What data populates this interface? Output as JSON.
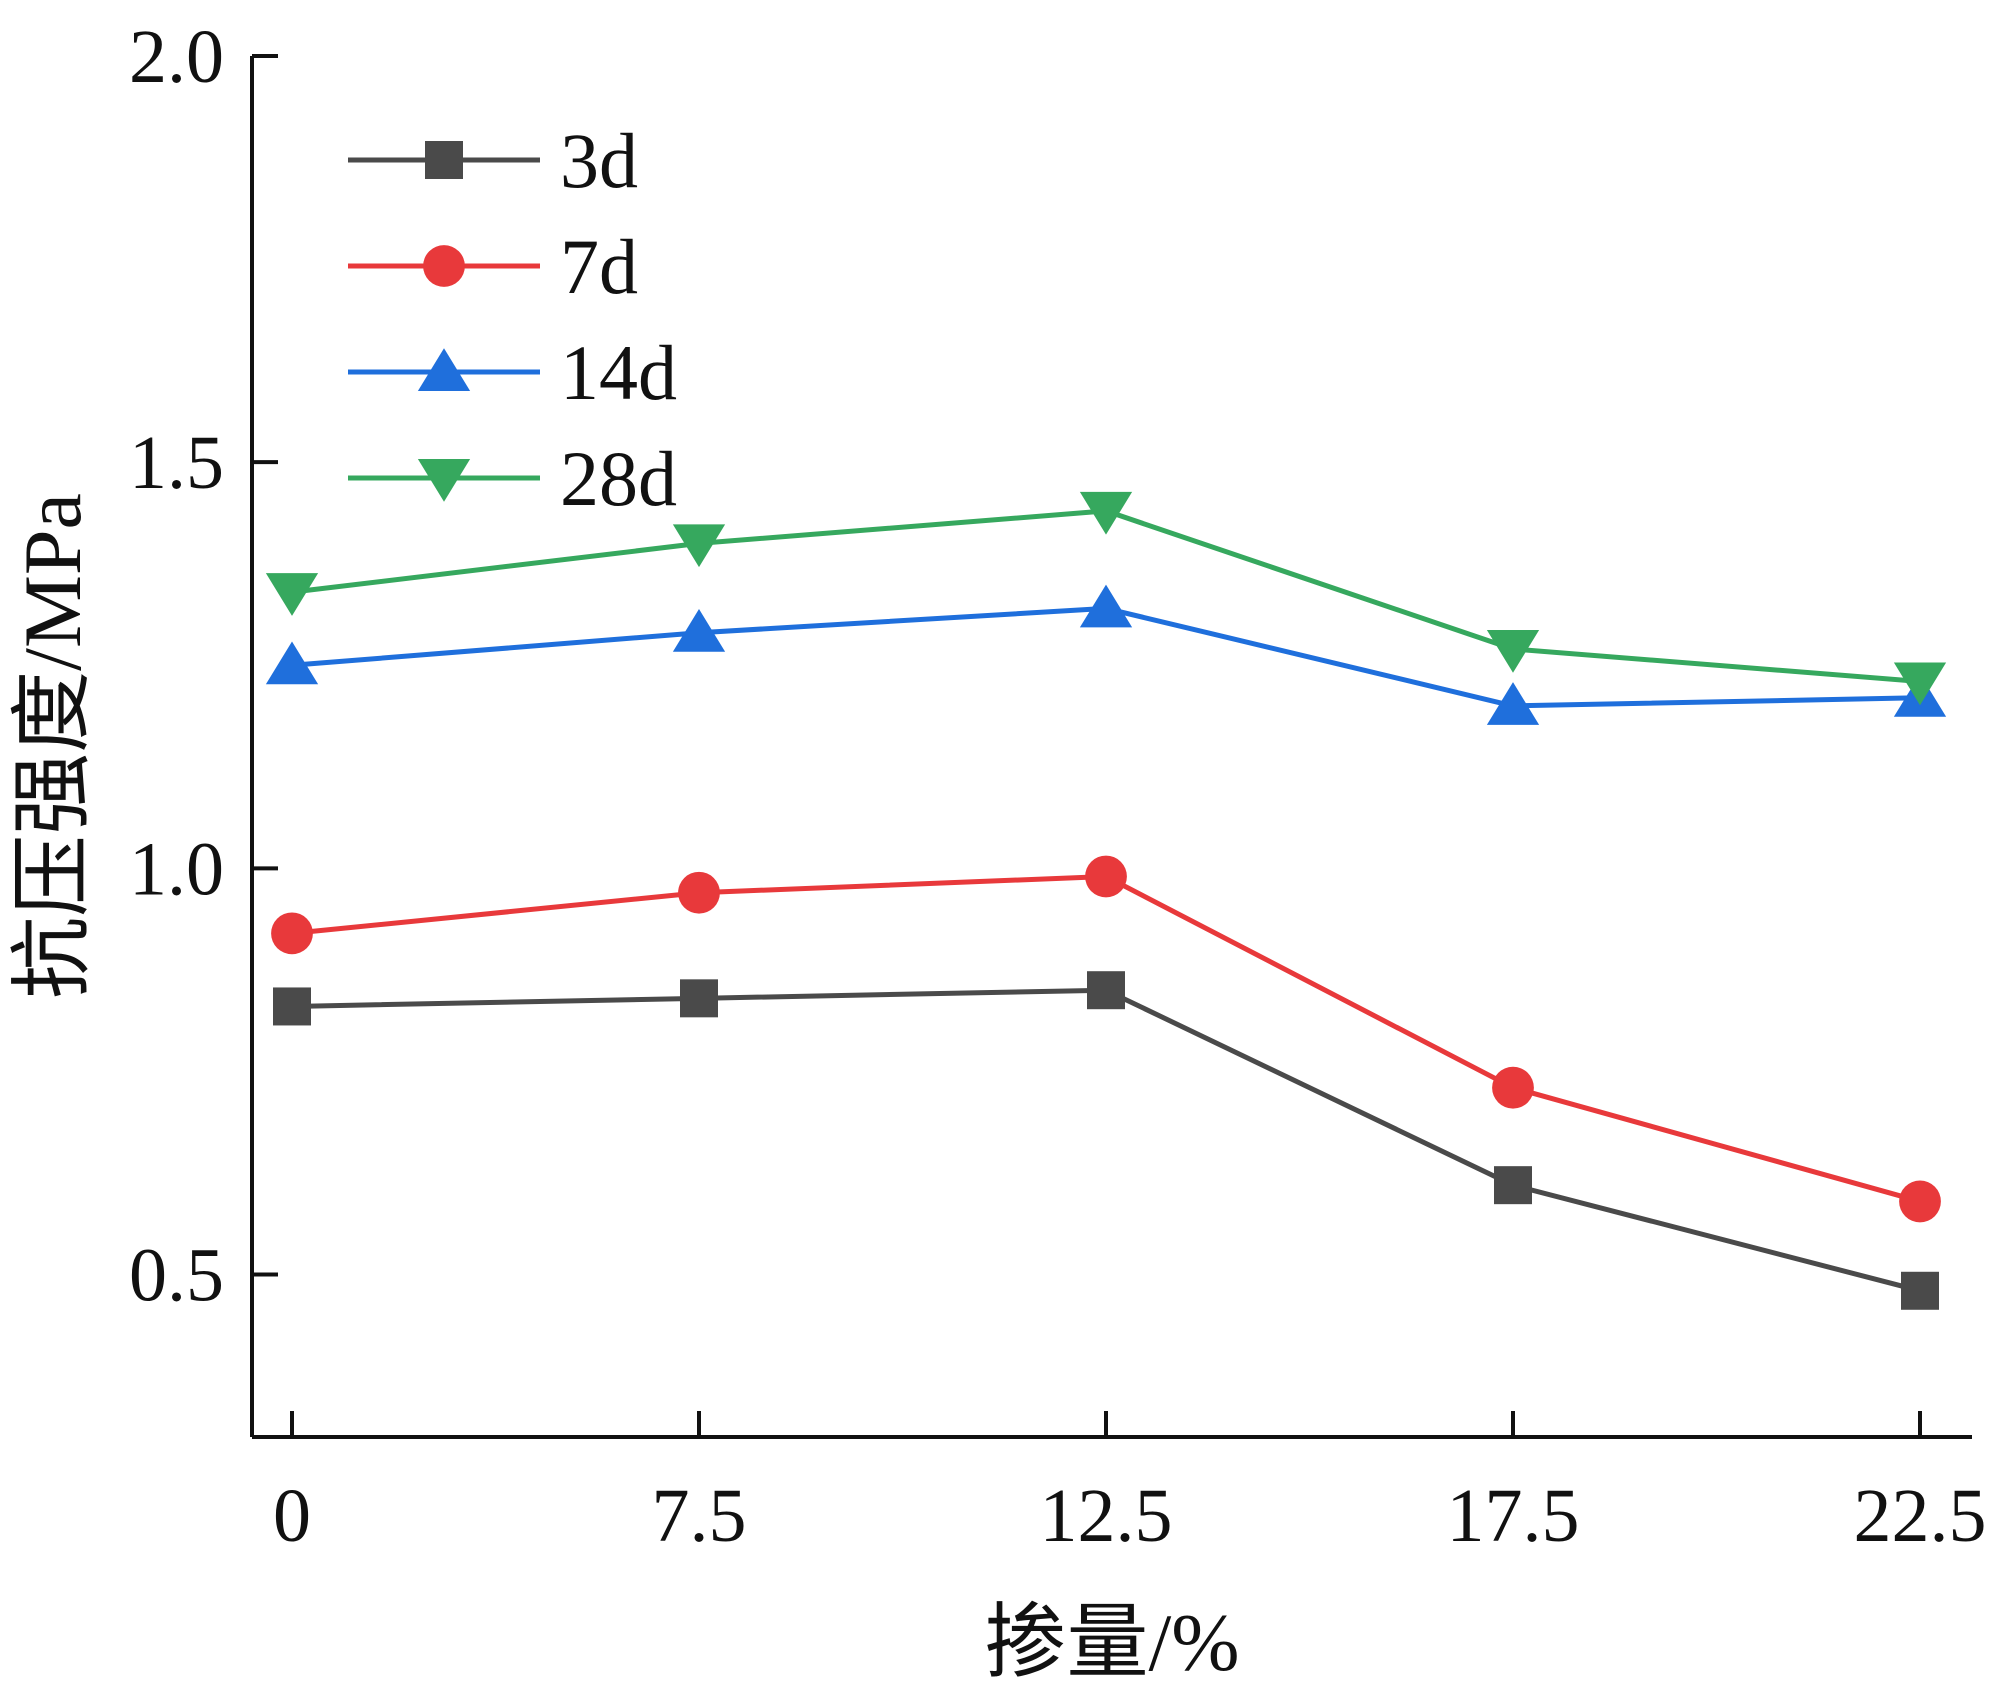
{
  "chart_data": {
    "type": "line",
    "title": "",
    "xlabel": "掺量/%",
    "ylabel": "抗压强度/MPa",
    "categories": [
      "0",
      "7.5",
      "12.5",
      "17.5",
      "22.5"
    ],
    "ylim": [
      0.3,
      2.0
    ],
    "yticks": [
      "0.5",
      "1.0",
      "1.5",
      "2.0"
    ],
    "ytick_values": [
      0.5,
      1.0,
      1.5,
      2.0
    ],
    "grid": false,
    "legend_position": "top-left",
    "series": [
      {
        "name": "3d",
        "color": "#4a4a4a",
        "marker": "square",
        "values": [
          0.83,
          0.84,
          0.85,
          0.61,
          0.48
        ]
      },
      {
        "name": "7d",
        "color": "#e8393b",
        "marker": "circle",
        "values": [
          0.92,
          0.97,
          0.99,
          0.73,
          0.59
        ]
      },
      {
        "name": "14d",
        "color": "#1f6fdc",
        "marker": "triangle-up",
        "values": [
          1.25,
          1.29,
          1.32,
          1.2,
          1.21
        ]
      },
      {
        "name": "28d",
        "color": "#36a85e",
        "marker": "triangle-down",
        "values": [
          1.34,
          1.4,
          1.44,
          1.27,
          1.23
        ]
      }
    ]
  }
}
